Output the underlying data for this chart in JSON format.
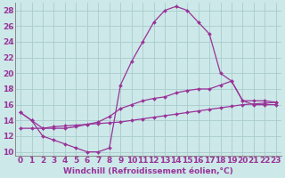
{
  "x_ticks": [
    0,
    1,
    2,
    3,
    4,
    5,
    6,
    7,
    8,
    9,
    10,
    11,
    12,
    13,
    14,
    15,
    16,
    17,
    18,
    19,
    20,
    21,
    22,
    23
  ],
  "line1_y": [
    15.0,
    14.0,
    12.0,
    11.5,
    11.0,
    10.5,
    10.0,
    10.0,
    10.5,
    18.5,
    21.5,
    24.0,
    26.5,
    28.0,
    28.5,
    28.0,
    26.5,
    25.0,
    20.0,
    19.0,
    16.5,
    16.0,
    16.0,
    16.0
  ],
  "line2_y": [
    15.0,
    14.0,
    13.0,
    13.0,
    13.0,
    13.2,
    13.5,
    13.8,
    14.5,
    15.5,
    16.0,
    16.5,
    16.8,
    17.0,
    17.5,
    17.8,
    18.0,
    18.0,
    18.5,
    19.0,
    16.5,
    16.5,
    16.5,
    16.3
  ],
  "line3_y": [
    13.0,
    13.0,
    13.0,
    13.2,
    13.3,
    13.4,
    13.5,
    13.6,
    13.7,
    13.8,
    14.0,
    14.2,
    14.4,
    14.6,
    14.8,
    15.0,
    15.2,
    15.4,
    15.6,
    15.8,
    16.0,
    16.1,
    16.2,
    16.3
  ],
  "line_color": "#993399",
  "bg_color": "#cce8e8",
  "grid_color": "#aacccc",
  "ylim": [
    9.5,
    29
  ],
  "yticks": [
    10,
    12,
    14,
    16,
    18,
    20,
    22,
    24,
    26,
    28
  ],
  "xlabel": "Windchill (Refroidissement éolien,°C)",
  "xlabel_color": "#993399",
  "xlabel_fontsize": 6.5,
  "tick_fontsize": 6.5,
  "marker": "D",
  "marker_size": 2.0,
  "line_width": 0.9
}
